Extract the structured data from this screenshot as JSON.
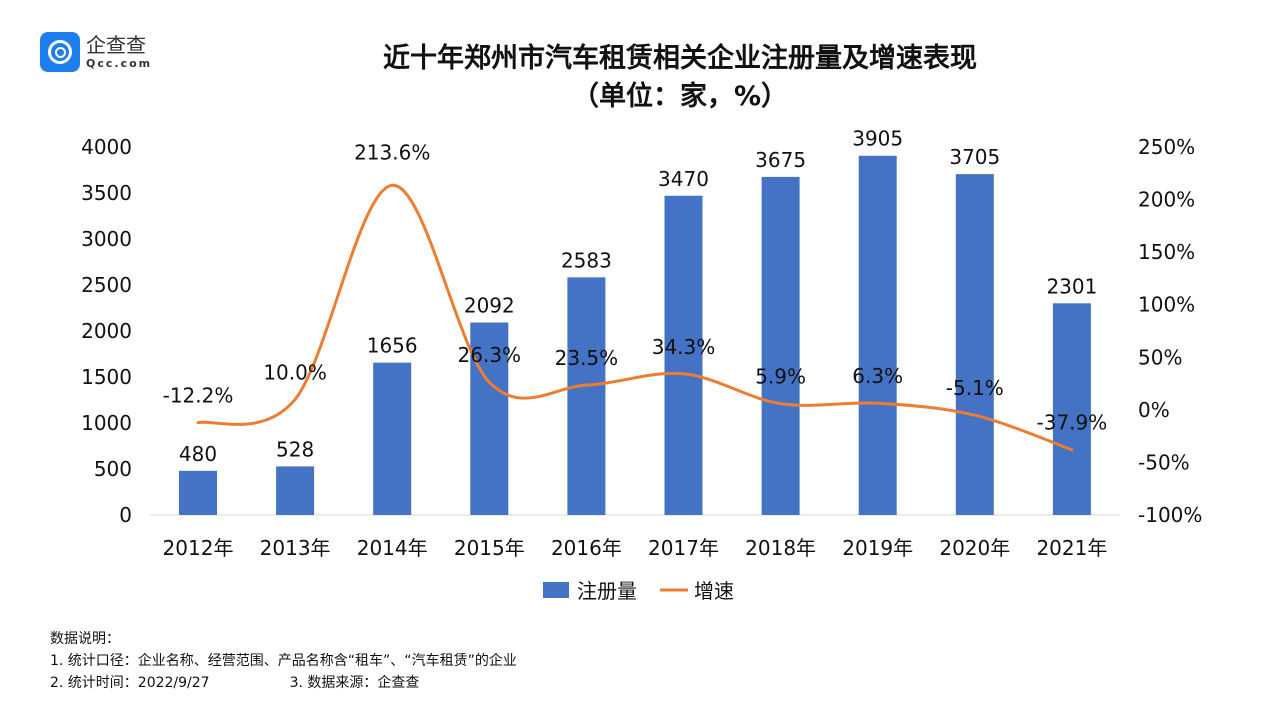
{
  "logo": {
    "cn": "企查查",
    "en": "Qcc.com"
  },
  "chart_data": {
    "type": "bar+line",
    "title": "近十年郑州市汽车租赁相关企业注册量及增速表现",
    "subtitle": "（单位：家，%）",
    "categories": [
      "2012年",
      "2013年",
      "2014年",
      "2015年",
      "2016年",
      "2017年",
      "2018年",
      "2019年",
      "2020年",
      "2021年"
    ],
    "series": [
      {
        "name": "注册量",
        "type": "bar",
        "axis": "left",
        "color": "#4472c4",
        "values": [
          480,
          528,
          1656,
          2092,
          2583,
          3470,
          3675,
          3905,
          3705,
          2301
        ],
        "labels": [
          "480",
          "528",
          "1656",
          "2092",
          "2583",
          "3470",
          "3675",
          "3905",
          "3705",
          "2301"
        ]
      },
      {
        "name": "增速",
        "type": "line",
        "axis": "right",
        "color": "#ed7d31",
        "values": [
          -12.2,
          10.0,
          213.6,
          26.3,
          23.5,
          34.3,
          5.9,
          6.3,
          -5.1,
          -37.9
        ],
        "labels": [
          "-12.2%",
          "10.0%",
          "213.6%",
          "26.3%",
          "23.5%",
          "34.3%",
          "5.9%",
          "6.3%",
          "-5.1%",
          "-37.9%"
        ]
      }
    ],
    "y_left": {
      "range": [
        0,
        4000
      ],
      "ticks": [
        "0",
        "500",
        "1000",
        "1500",
        "2000",
        "2500",
        "3000",
        "3500",
        "4000"
      ]
    },
    "y_right": {
      "range": [
        -100,
        250
      ],
      "ticks": [
        "-100%",
        "-50%",
        "0%",
        "50%",
        "100%",
        "150%",
        "200%",
        "250%"
      ]
    },
    "grid": false,
    "legend": "bottom"
  },
  "notes": {
    "heading": "数据说明：",
    "line1": "1. 统计口径：企业名称、经营范围、产品名称含“租车”、“汽车租赁”的企业",
    "line2a": "2. 统计时间：2022/9/27",
    "line2b": "3. 数据来源：企查查"
  }
}
